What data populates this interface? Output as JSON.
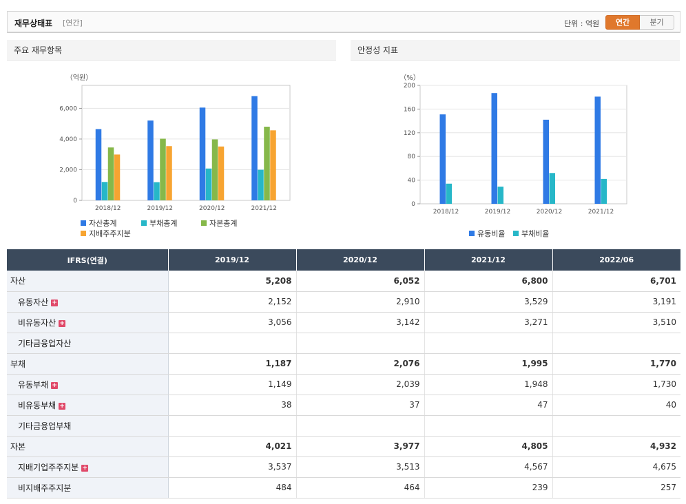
{
  "header": {
    "title": "재무상태표",
    "period": "[연간]",
    "unit": "단위 : 억원",
    "toggle": [
      "연간",
      "분기"
    ]
  },
  "panels": {
    "left_title": "주요 재무항목",
    "right_title": "안정성 지표"
  },
  "colors": {
    "blue": "#2f7ae5",
    "teal": "#27b7c8",
    "green": "#86b84a",
    "orange": "#f7a431",
    "toggle_on": "#e0782c",
    "table_header": "#3b4a5c"
  },
  "chart_data": [
    {
      "type": "bar",
      "ylabel": "（억원）",
      "categories": [
        "2018/12",
        "2019/12",
        "2020/12",
        "2021/12"
      ],
      "ylim": [
        0,
        7500
      ],
      "yticks": [
        0,
        2000,
        4000,
        6000
      ],
      "ytick_labels": [
        "0",
        "2,000",
        "4,000",
        "6,000"
      ],
      "series": [
        {
          "name": "자산총계",
          "color": "#2f7ae5",
          "values": [
            4650,
            5208,
            6052,
            6800
          ]
        },
        {
          "name": "부채총계",
          "color": "#27b7c8",
          "values": [
            1200,
            1187,
            2076,
            1995
          ]
        },
        {
          "name": "자본총계",
          "color": "#86b84a",
          "values": [
            3450,
            4021,
            3977,
            4805
          ]
        },
        {
          "name": "지배주주지분",
          "color": "#f7a431",
          "values": [
            2990,
            3537,
            3513,
            4567
          ]
        }
      ],
      "legend": "bottom"
    },
    {
      "type": "bar",
      "ylabel": "（%）",
      "categories": [
        "2018/12",
        "2019/12",
        "2020/12",
        "2021/12"
      ],
      "ylim": [
        0,
        200
      ],
      "yticks": [
        0,
        40,
        80,
        120,
        160,
        200
      ],
      "ytick_labels": [
        "0",
        "40",
        "80",
        "120",
        "160",
        "200"
      ],
      "series": [
        {
          "name": "유동비율",
          "color": "#2f7ae5",
          "values": [
            151,
            187,
            142,
            181
          ]
        },
        {
          "name": "부채비율",
          "color": "#27b7c8",
          "values": [
            34,
            29,
            52,
            42
          ]
        }
      ],
      "legend": "bottom"
    }
  ],
  "table": {
    "headers": [
      "IFRS(연결)",
      "2019/12",
      "2020/12",
      "2021/12",
      "2022/06"
    ],
    "rows": [
      {
        "label": "자산",
        "values": [
          "5,208",
          "6,052",
          "6,800",
          "6,701"
        ]
      },
      {
        "label": "유동자산",
        "values": [
          "2,152",
          "2,910",
          "3,529",
          "3,191"
        ]
      },
      {
        "label": "비유동자산",
        "values": [
          "3,056",
          "3,142",
          "3,271",
          "3,510"
        ]
      },
      {
        "label": "기타금융업자산",
        "values": [
          "",
          "",
          "",
          ""
        ]
      },
      {
        "label": "부채",
        "values": [
          "1,187",
          "2,076",
          "1,995",
          "1,770"
        ]
      },
      {
        "label": "유동부채",
        "values": [
          "1,149",
          "2,039",
          "1,948",
          "1,730"
        ]
      },
      {
        "label": "비유동부채",
        "values": [
          "38",
          "37",
          "47",
          "40"
        ]
      },
      {
        "label": "기타금융업부채",
        "values": [
          "",
          "",
          "",
          ""
        ]
      },
      {
        "label": "자본",
        "values": [
          "4,021",
          "3,977",
          "4,805",
          "4,932"
        ]
      },
      {
        "label": "지배기업주주지분",
        "values": [
          "3,537",
          "3,513",
          "4,567",
          "4,675"
        ]
      },
      {
        "label": "비지배주주지분",
        "values": [
          "484",
          "464",
          "239",
          "257"
        ]
      }
    ]
  }
}
